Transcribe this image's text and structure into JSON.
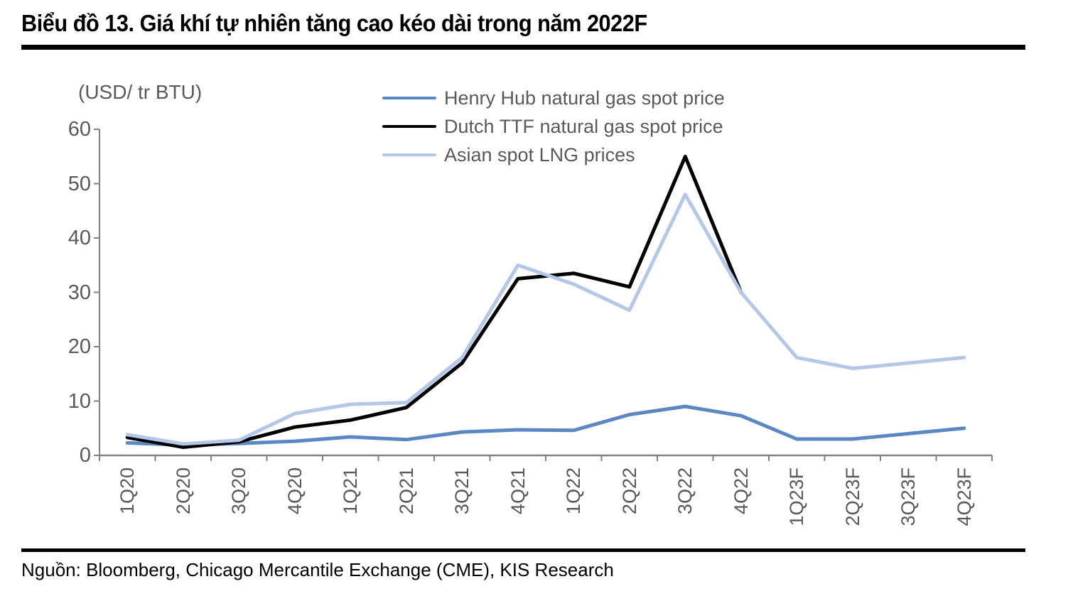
{
  "page": {
    "title": "Biểu đồ 13. Giá khí tự nhiên tăng cao kéo dài trong năm 2022F",
    "source": "Nguồn: Bloomberg, Chicago Mercantile Exchange (CME), KIS Research"
  },
  "colors": {
    "axis": "#808080",
    "tick_text": "#595959",
    "rule": "#000000",
    "henry_hub_blue": "#5B88C2",
    "dutch_ttf_black": "#000000",
    "asian_lng_lightblue": "#B4C7E7"
  },
  "chart_data": {
    "type": "line",
    "title": "Biểu đồ 13. Giá khí tự nhiên tăng cao kéo dài trong năm 2022F",
    "unit_label": "(USD/ tr BTU)",
    "xlabel": "",
    "ylabel": "(USD/ tr BTU)",
    "ylim": [
      0,
      60
    ],
    "yticks": [
      0,
      10,
      20,
      30,
      40,
      50,
      60
    ],
    "grid": false,
    "legend_position": "top",
    "categories": [
      "1Q20",
      "2Q20",
      "3Q20",
      "4Q20",
      "1Q21",
      "2Q21",
      "3Q21",
      "4Q21",
      "1Q22",
      "2Q22",
      "3Q22",
      "4Q22",
      "1Q23F",
      "2Q23F",
      "3Q23F",
      "4Q23F"
    ],
    "series": [
      {
        "name": "Henry Hub natural gas spot price",
        "color": "#5B88C2",
        "values": [
          2.3,
          1.9,
          2.2,
          2.6,
          3.4,
          2.9,
          4.3,
          4.7,
          4.6,
          7.5,
          9.0,
          7.3,
          3.0,
          3.0,
          4.0,
          5.0
        ]
      },
      {
        "name": "Dutch TTF natural gas spot price",
        "color": "#000000",
        "values": [
          3.3,
          1.5,
          2.5,
          5.2,
          6.5,
          8.8,
          17.0,
          32.5,
          33.5,
          31.0,
          55.0,
          30.0,
          null,
          null,
          null,
          null
        ]
      },
      {
        "name": "Asian spot LNG prices",
        "color": "#B4C7E7",
        "values": [
          3.8,
          2.1,
          2.8,
          7.7,
          9.4,
          9.7,
          18.0,
          35.0,
          31.5,
          26.7,
          48.0,
          30.0,
          18.0,
          16.0,
          17.0,
          18.0
        ]
      }
    ],
    "source": "Nguồn: Bloomberg, Chicago Mercantile Exchange (CME), KIS Research"
  }
}
